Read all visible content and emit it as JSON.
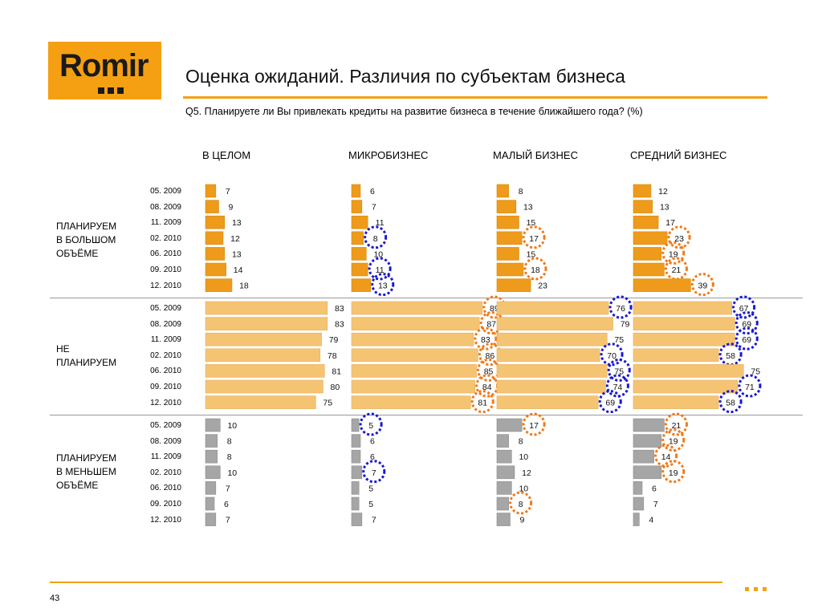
{
  "logo": {
    "text": "Romir"
  },
  "title": "Оценка ожиданий. Различия по субъектам бизнеса",
  "subtitle": "Q5. Планируете ли Вы привлекать кредиты на развитие бизнеса в течение ближайшего года? (%)",
  "page_number": "43",
  "colors": {
    "accent": "#f5a012",
    "bar_dark": "#ee9a1a",
    "bar_light": "#f5c473",
    "bar_gray": "#a6a6a6",
    "highlight_up": "#f07a1c",
    "highlight_down": "#1a1ad0"
  },
  "chart_data": {
    "type": "bar",
    "orientation": "horizontal",
    "columns": [
      "В ЦЕЛОМ",
      "МИКРОБИЗНЕС",
      "МАЛЫЙ БИЗНЕС",
      "СРЕДНИЙ БИЗНЕС"
    ],
    "categories": [
      "05. 2009",
      "08. 2009",
      "11. 2009",
      "02. 2010",
      "06. 2010",
      "09. 2010",
      "12. 2010"
    ],
    "groups": [
      {
        "label": [
          "ПЛАНИРУЕМ",
          "В БОЛЬШОМ",
          "ОБЪЁМЕ"
        ],
        "series": [
          {
            "values": [
              7,
              9,
              13,
              12,
              13,
              14,
              18
            ],
            "highlights": [
              null,
              null,
              null,
              null,
              null,
              null,
              null
            ]
          },
          {
            "values": [
              6,
              7,
              11,
              8,
              10,
              11,
              13
            ],
            "highlights": [
              null,
              null,
              null,
              "down",
              null,
              "down",
              "down"
            ]
          },
          {
            "values": [
              8,
              13,
              15,
              17,
              15,
              18,
              23
            ],
            "highlights": [
              null,
              null,
              null,
              "up",
              null,
              "up",
              null
            ]
          },
          {
            "values": [
              12,
              13,
              17,
              23,
              19,
              21,
              39
            ],
            "highlights": [
              null,
              null,
              null,
              "up",
              "up",
              "up",
              "up"
            ]
          }
        ]
      },
      {
        "label": [
          "НЕ",
          "ПЛАНИРУЕМ"
        ],
        "series": [
          {
            "values": [
              83,
              83,
              79,
              78,
              81,
              80,
              75
            ],
            "highlights": [
              null,
              null,
              null,
              null,
              null,
              null,
              null
            ]
          },
          {
            "values": [
              89,
              87,
              83,
              86,
              85,
              84,
              81
            ],
            "highlights": [
              "up",
              "up",
              "up",
              "up",
              "up",
              "up",
              "up"
            ]
          },
          {
            "values": [
              76,
              79,
              75,
              70,
              75,
              74,
              69
            ],
            "highlights": [
              "down",
              null,
              null,
              "down",
              "down",
              "down",
              "down"
            ]
          },
          {
            "values": [
              67,
              69,
              69,
              58,
              75,
              71,
              58
            ],
            "highlights": [
              "down",
              "down",
              "down",
              "down",
              null,
              "down",
              "down"
            ]
          }
        ]
      },
      {
        "label": [
          "ПЛАНИРУЕМ",
          "В МЕНЬШЕМ",
          "ОБЪЁМЕ"
        ],
        "series": [
          {
            "values": [
              10,
              8,
              8,
              10,
              7,
              6,
              7
            ],
            "highlights": [
              null,
              null,
              null,
              null,
              null,
              null,
              null
            ]
          },
          {
            "values": [
              5,
              6,
              6,
              7,
              5,
              5,
              7
            ],
            "highlights": [
              "down",
              null,
              null,
              "down",
              null,
              null,
              null
            ]
          },
          {
            "values": [
              17,
              8,
              10,
              12,
              10,
              8,
              9
            ],
            "highlights": [
              "up",
              null,
              null,
              null,
              null,
              "up",
              null
            ]
          },
          {
            "values": [
              21,
              19,
              14,
              19,
              6,
              7,
              4
            ],
            "highlights": [
              "up",
              "up",
              "up",
              "up",
              null,
              null,
              null
            ]
          }
        ]
      }
    ]
  }
}
